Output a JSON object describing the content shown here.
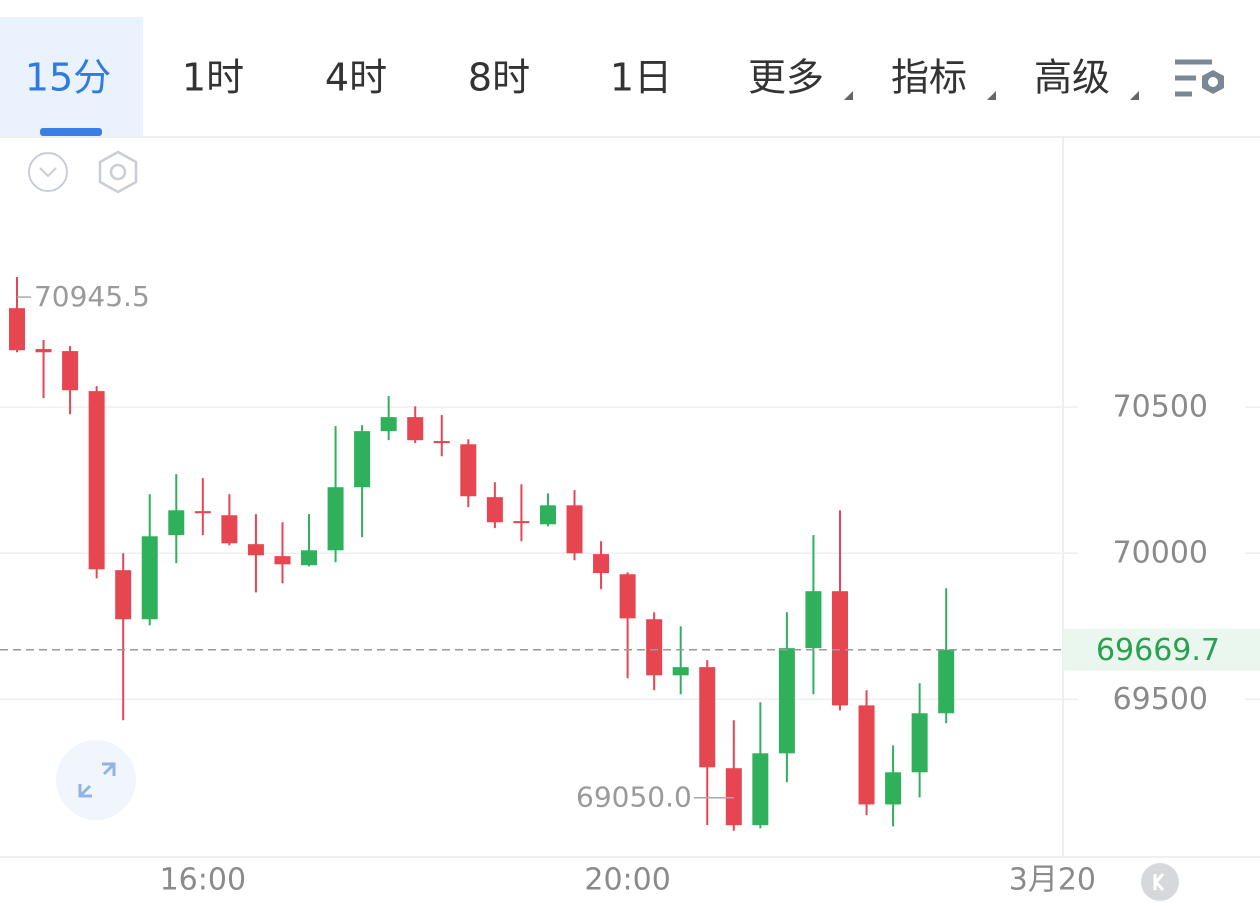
{
  "header": {
    "tabs": [
      "15分",
      "1时",
      "4时",
      "8时",
      "1日",
      "更多",
      "指标",
      "高级"
    ],
    "active_tab": 0
  },
  "chart_data": {
    "type": "candlestick",
    "categories": [
      null,
      null,
      null,
      null,
      null,
      null,
      null,
      null,
      null,
      null,
      null,
      null,
      null,
      null,
      null,
      null,
      null,
      null,
      null,
      null,
      null,
      null,
      null,
      null,
      null,
      null,
      null,
      null,
      null,
      null,
      null,
      null,
      null,
      null,
      null,
      null
    ],
    "xlim": [
      -0.64,
      39.4
    ],
    "xticks": [
      {
        "value": 7,
        "label": "16:00"
      },
      {
        "value": 23,
        "label": "20:00"
      },
      {
        "value": 39,
        "label": "3月20"
      }
    ],
    "open": [
      70839,
      70699,
      70692,
      70555,
      69942,
      69774,
      70062,
      70144,
      70130,
      70031,
      69990,
      69959,
      70010,
      70226,
      70418,
      70466,
      70384,
      70373,
      70192,
      70110,
      70099,
      70164,
      69997,
      69928,
      69774,
      69582,
      69610,
      69264,
      69069,
      69315,
      69675,
      69870,
      69479,
      69140,
      69250,
      69452
    ],
    "high": [
      70945.5,
      70730,
      70709,
      70572,
      70000,
      70202,
      70271,
      70257,
      70202,
      70134,
      70106,
      70134,
      70435,
      70438,
      70538,
      70503,
      70473,
      70390,
      70243,
      70236,
      70205,
      70216,
      70041,
      69935,
      69798,
      69750,
      69634,
      69428,
      69490,
      69798,
      70062,
      70147,
      69531,
      69342,
      69555,
      69880
    ],
    "low": [
      70688,
      70531,
      70476,
      69914,
      69428,
      69753,
      69966,
      70062,
      70027,
      69866,
      69897,
      69955,
      69969,
      70055,
      70387,
      70377,
      70332,
      70158,
      70086,
      70041,
      70092,
      69976,
      69877,
      69572,
      69531,
      69517,
      69069,
      69050,
      69058,
      69216,
      69517,
      69462,
      69103,
      69065,
      69164,
      69418
    ],
    "close": [
      70695,
      70688,
      70558,
      69945,
      69774,
      70058,
      70147,
      70137,
      70034,
      69993,
      69962,
      70010,
      70226,
      70418,
      70466,
      70387,
      70377,
      70195,
      70106,
      70103,
      70164,
      70000,
      69932,
      69777,
      69582,
      69610,
      69267,
      69069,
      69315,
      69675,
      69870,
      69479,
      69140,
      69250,
      69452,
      69669.7
    ],
    "up_color": "#2eb15a",
    "down_color": "#e5464f",
    "ylim": [
      68960,
      71425
    ],
    "yticks": [
      70500,
      70000,
      69500
    ],
    "grid": true,
    "max_label": 70945.5,
    "min_label": {
      "value": 69050,
      "label": "69050.0"
    },
    "last_price": 69669.7
  }
}
